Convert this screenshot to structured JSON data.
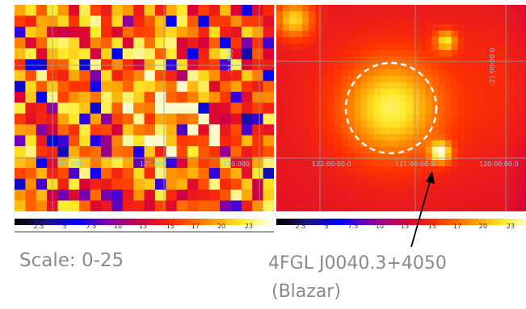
{
  "left_panel": {
    "coord_labels": [
      "122.000",
      "121.000",
      "120.000",
      "-21.000"
    ]
  },
  "right_panel": {
    "coord_labels": [
      "122:00:00.0",
      "121:00:00.0",
      "120:00:00.0",
      "-21:00:00.0"
    ]
  },
  "colorbar": {
    "ticks": [
      "2.5",
      "5",
      "7.5",
      "10",
      "13",
      "15",
      "17",
      "20",
      "23"
    ]
  },
  "captions": {
    "scale": "Scale: 0-25",
    "source_name": "4FGL J0040.3+4050",
    "source_type": "(Blazar)"
  },
  "colors": {
    "coord_text": "#66d9ff",
    "grid": "#7fa3b0",
    "circle": "#ffffff",
    "caption": "#8a8a8a"
  }
}
